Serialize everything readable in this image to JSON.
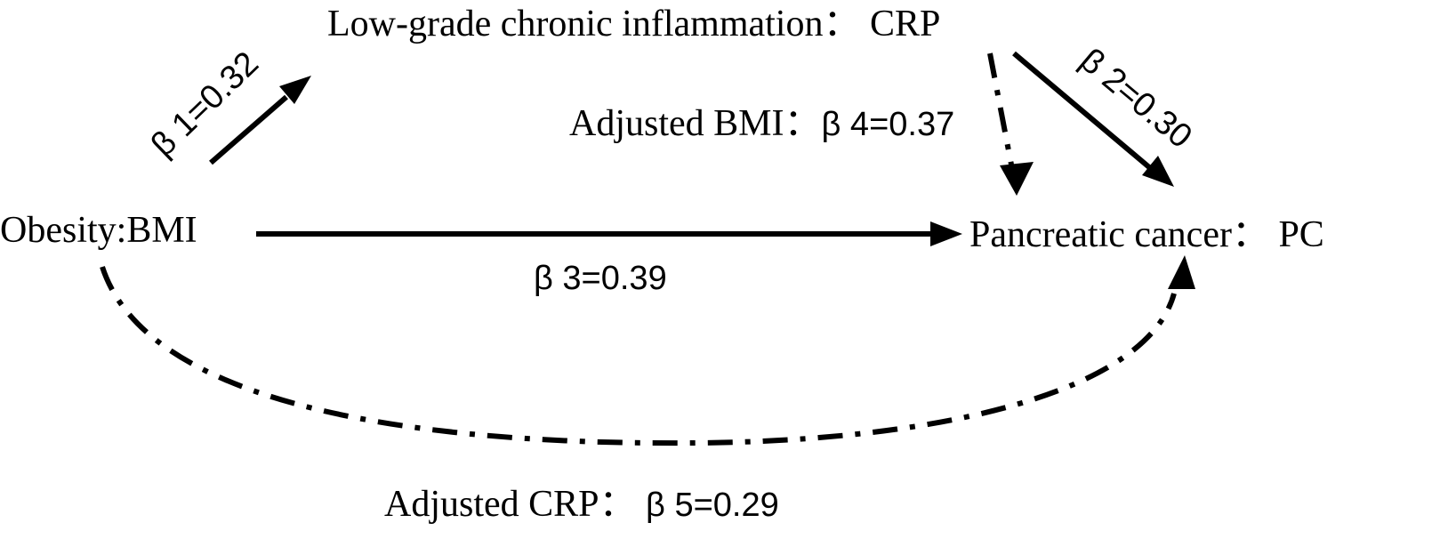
{
  "nodes": {
    "crp": "Low-grade chronic inflammation： CRP",
    "bmi": "Obesity:BMI",
    "pc": "Pancreatic cancer： PC"
  },
  "edges": {
    "beta1": {
      "symbol": "β",
      "text": " 1=0.32"
    },
    "beta2": {
      "symbol": "β",
      "text": " 2=0.30"
    },
    "beta3": {
      "symbol": "β",
      "text": " 3=0.39"
    },
    "beta4": {
      "prefix": "Adjusted BMI：",
      "symbol": "β",
      "text": " 4=0.37"
    },
    "beta5": {
      "prefix": "Adjusted CRP： ",
      "symbol": "β",
      "text": " 5=0.29"
    }
  },
  "colors": {
    "ink": "#000000",
    "background": "#ffffff"
  }
}
